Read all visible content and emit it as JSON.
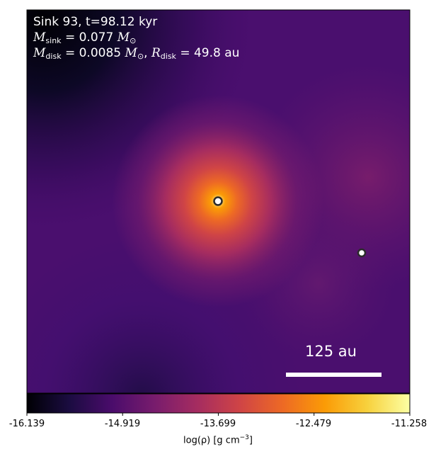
{
  "chart_data": {
    "type": "heatmap",
    "colormap": "inferno",
    "annotation": {
      "line1": "Sink 93, t=98.12 kyr",
      "m_sink_label": "M",
      "m_sink_sub": "sink",
      "m_sink_value": " = 0.077 ",
      "m_disk_label": "M",
      "m_disk_sub": "disk",
      "m_disk_value": " = 0.0085 ",
      "r_disk_label": "R",
      "r_disk_sub": "disk",
      "r_disk_value": " = 49.8 au",
      "msun_symbol": "M",
      "msun_sub": "⊙"
    },
    "scale_bar": {
      "label": "125 au",
      "length_au": 125
    },
    "colorbar": {
      "label_prefix": "log(ρ) [g cm",
      "label_exp": "−3",
      "label_suffix": "]",
      "vmin": -16.139,
      "vmax": -11.258,
      "ticks": [
        "-16.139",
        "-14.919",
        "-13.699",
        "-12.479",
        "-11.258"
      ]
    },
    "sinks": [
      {
        "name": "central sink",
        "position": "center"
      },
      {
        "name": "companion sink",
        "position": "right"
      }
    ],
    "colors": {
      "colormap_stops": [
        "#000004",
        "#1b0c41",
        "#4a0c6b",
        "#781c6d",
        "#a52c60",
        "#cf4446",
        "#ed6925",
        "#fb9b06",
        "#f7d13d",
        "#fcffa4"
      ]
    }
  }
}
